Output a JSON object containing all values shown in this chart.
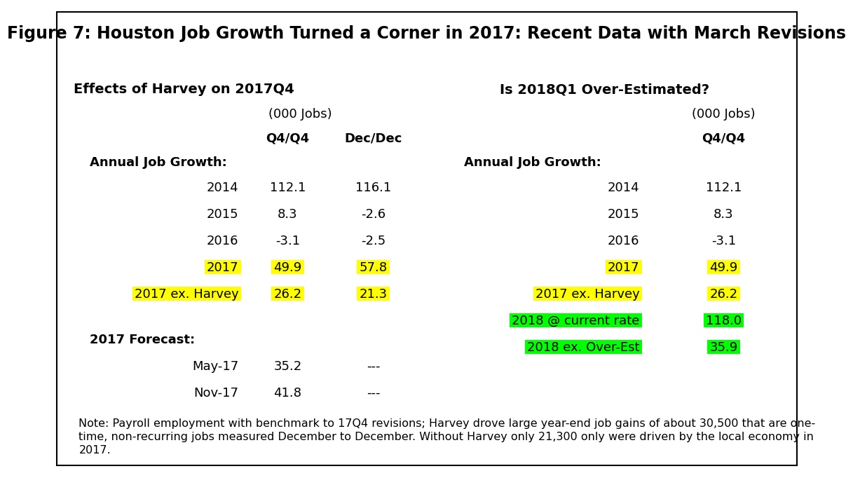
{
  "title": "Figure 7: Houston Job Growth Turned a Corner in 2017: Recent Data with March Revisions",
  "left_header": "Effects of Harvey on 2017Q4",
  "right_header": "Is 2018Q1 Over-Estimated?",
  "subheader": "(000 Jobs)",
  "col_q4": "Q4/Q4",
  "col_dec": "Dec/Dec",
  "annual_label": "Annual Job Growth:",
  "forecast_label": "2017 Forecast:",
  "left_rows": [
    {
      "label": "2014",
      "q4q4": "112.1",
      "decdec": "116.1",
      "hl_label": null,
      "hl_q4": null,
      "hl_dec": null
    },
    {
      "label": "2015",
      "q4q4": "8.3",
      "decdec": "-2.6",
      "hl_label": null,
      "hl_q4": null,
      "hl_dec": null
    },
    {
      "label": "2016",
      "q4q4": "-3.1",
      "decdec": "-2.5",
      "hl_label": null,
      "hl_q4": null,
      "hl_dec": null
    },
    {
      "label": "2017",
      "q4q4": "49.9",
      "decdec": "57.8",
      "hl_label": "#FFFF00",
      "hl_q4": "#FFFF00",
      "hl_dec": "#FFFF00"
    },
    {
      "label": "2017 ex. Harvey",
      "q4q4": "26.2",
      "decdec": "21.3",
      "hl_label": "#FFFF00",
      "hl_q4": "#FFFF00",
      "hl_dec": "#FFFF00"
    }
  ],
  "forecast_rows": [
    {
      "label": "May-17",
      "q4q4": "35.2",
      "decdec": "---"
    },
    {
      "label": "Nov-17",
      "q4q4": "41.8",
      "decdec": "---"
    }
  ],
  "right_rows": [
    {
      "label": "2014",
      "q4q4": "112.1",
      "hl_label": null,
      "hl_q4": null
    },
    {
      "label": "2015",
      "q4q4": "8.3",
      "hl_label": null,
      "hl_q4": null
    },
    {
      "label": "2016",
      "q4q4": "-3.1",
      "hl_label": null,
      "hl_q4": null
    },
    {
      "label": "2017",
      "q4q4": "49.9",
      "hl_label": "#FFFF00",
      "hl_q4": "#FFFF00"
    },
    {
      "label": "2017 ex. Harvey",
      "q4q4": "26.2",
      "hl_label": "#FFFF00",
      "hl_q4": "#FFFF00"
    },
    {
      "label": "2018 @ current rate",
      "q4q4": "118.0",
      "hl_label": "#00FF00",
      "hl_q4": "#00FF00"
    },
    {
      "label": "2018 ex. Over-Est",
      "q4q4": "35.9",
      "hl_label": "#00FF00",
      "hl_q4": "#00FF00"
    }
  ],
  "note_line1": "Note: Payroll employment with benchmark to 17Q4 revisions; Harvey drove large year-end job gains of about 30,500 that are one-",
  "note_line2": "time, non-recurring jobs measured December to December. Without Harvey only 21,300 only were driven by the local economy in",
  "note_line3": "2017.",
  "bg_color": "#FFFFFF",
  "border_color": "#000000",
  "title_fontsize": 17,
  "header_fontsize": 14,
  "body_fontsize": 13,
  "note_fontsize": 11.5
}
